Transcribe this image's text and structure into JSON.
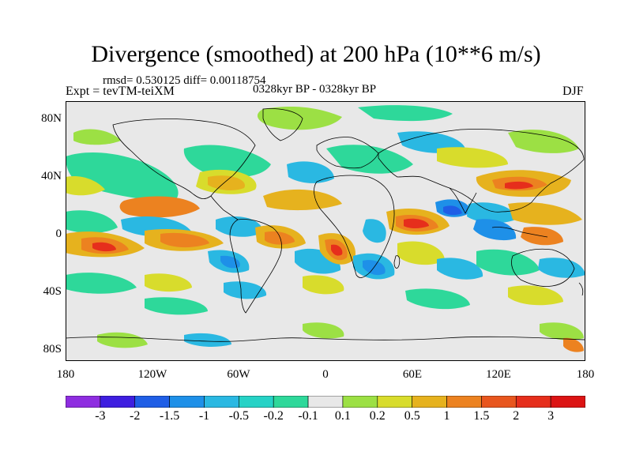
{
  "figure": {
    "title": "Divergence (smoothed) at 200 hPa (10**6 m/s)",
    "stats": "rmsd= 0.530125 diff= 0.00118754",
    "expt": "Expt = tevTM-teiXM",
    "period": "0328kyr BP - 0328kyr BP",
    "season": "DJF"
  },
  "axes": {
    "lat_labels": [
      "80N",
      "40N",
      "0",
      "40S",
      "80S"
    ],
    "lat_values": [
      80,
      40,
      0,
      -40,
      -80
    ],
    "lon_labels": [
      "180",
      "120W",
      "60W",
      "0",
      "60E",
      "120E",
      "180"
    ],
    "lon_values": [
      -180,
      -120,
      -60,
      0,
      60,
      120,
      180
    ],
    "lon_range": [
      -180,
      180
    ],
    "lat_range": [
      -90,
      90
    ]
  },
  "colorbar": {
    "labels": [
      "-3",
      "-2",
      "-1.5",
      "-1",
      "-0.5",
      "-0.2",
      "-0.1",
      "0.1",
      "0.2",
      "0.5",
      "1",
      "1.5",
      "2",
      "3"
    ],
    "colors": [
      "#8e2de0",
      "#3e1ee0",
      "#1f5ee6",
      "#1e90e8",
      "#2ab8e2",
      "#26d2c6",
      "#2ed89a",
      "#e8e8e8",
      "#9ce044",
      "#d8dc2c",
      "#e6b21e",
      "#ec8220",
      "#e8561e",
      "#e62e1c",
      "#dc1414"
    ]
  }
}
